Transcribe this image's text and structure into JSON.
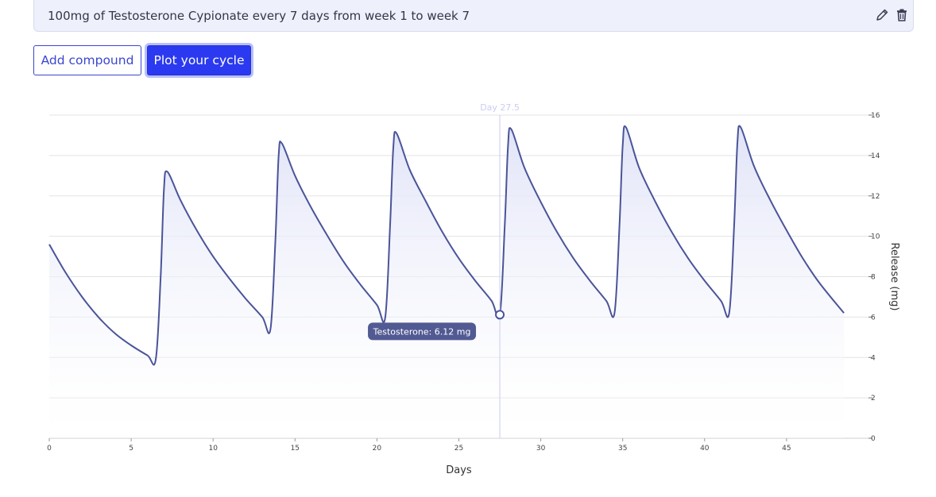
{
  "compound_row": {
    "text": "100mg of Testosterone Cypionate every 7 days from week 1 to week 7",
    "edit_icon": "pencil-icon",
    "delete_icon": "trash-icon"
  },
  "buttons": {
    "add_compound": "Add compound",
    "plot_cycle": "Plot your cycle"
  },
  "colors": {
    "accent": "#2b3af0",
    "line": "#4a5499",
    "tooltip_bg": "#525a93",
    "area_fill": "#e6e8f8"
  },
  "chart_data": {
    "type": "area",
    "xlabel": "Days",
    "ylabel": "Release (mg)",
    "xlim": [
      0,
      50
    ],
    "ylim": [
      0,
      16
    ],
    "x_ticks": [
      0,
      5,
      10,
      15,
      20,
      25,
      30,
      35,
      40,
      45
    ],
    "y_ticks": [
      0,
      2,
      4,
      6,
      8,
      10,
      12,
      14,
      16
    ],
    "y_axis_position": "right",
    "grid": true,
    "series": [
      {
        "x": [
          0,
          1,
          2,
          3,
          4,
          5,
          6,
          6.5,
          6.8,
          7.0,
          7.2,
          8,
          9,
          10,
          11,
          12,
          13,
          13.5,
          13.8,
          14.0,
          14.2,
          15,
          16,
          17,
          18,
          19,
          20,
          20.5,
          20.8,
          21.0,
          21.2,
          22,
          23,
          24,
          25,
          26,
          27,
          27.5,
          27.8,
          28.0,
          28.2,
          29,
          30,
          31,
          32,
          33,
          34,
          34.5,
          34.8,
          35.0,
          35.2,
          36,
          37,
          38,
          39,
          40,
          41,
          41.5,
          41.8,
          42.0,
          42.2,
          43,
          44,
          45,
          46,
          47,
          48.5
        ],
        "y": [
          9.6,
          8.2,
          7.0,
          6.0,
          5.2,
          4.6,
          4.1,
          3.9,
          8.0,
          12.3,
          13.2,
          11.8,
          10.3,
          9.0,
          7.9,
          6.9,
          6.0,
          5.4,
          9.8,
          14.0,
          14.6,
          13.0,
          11.4,
          10.0,
          8.7,
          7.6,
          6.6,
          5.95,
          10.5,
          14.4,
          15.1,
          13.3,
          11.7,
          10.2,
          8.9,
          7.8,
          6.8,
          6.12,
          10.5,
          14.5,
          15.3,
          13.4,
          11.7,
          10.2,
          8.9,
          7.8,
          6.8,
          6.2,
          10.5,
          14.5,
          15.4,
          13.4,
          11.7,
          10.2,
          8.9,
          7.8,
          6.8,
          6.2,
          10.5,
          14.6,
          15.4,
          13.5,
          11.8,
          10.3,
          8.9,
          7.7,
          6.2
        ]
      }
    ],
    "cursor": {
      "x": 27.5,
      "label": "Day 27.5",
      "point_y": 6.12,
      "tooltip": "Testosterone: 6.12 mg"
    }
  }
}
